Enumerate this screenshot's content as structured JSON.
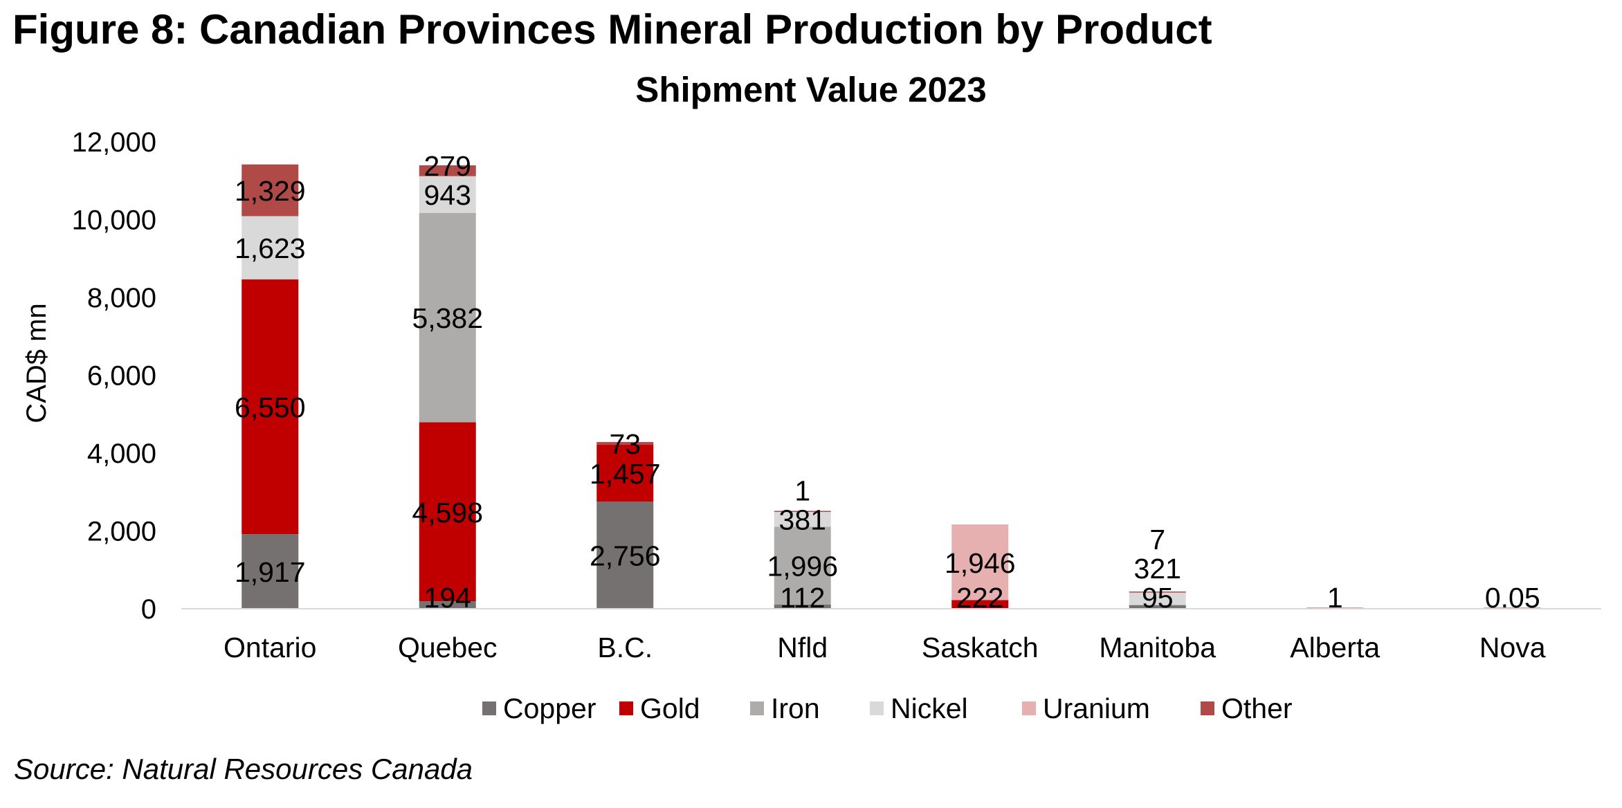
{
  "figure_title": "Figure 8: Canadian Provinces Mineral Production by Product",
  "source": "Source: Natural Resources Canada",
  "chart_data": {
    "type": "bar",
    "stacked": true,
    "title": "Shipment Value 2023",
    "ylabel": "CAD$ mn",
    "xlabel": "",
    "ylim": [
      0,
      12000
    ],
    "yticks": [
      0,
      2000,
      4000,
      6000,
      8000,
      10000,
      12000
    ],
    "ytick_labels": [
      "0",
      "2,000",
      "4,000",
      "6,000",
      "8,000",
      "10,000",
      "12,000"
    ],
    "grid": false,
    "legend_position": "bottom",
    "categories": [
      "Ontario",
      "Quebec",
      "B.C.",
      "Nfld",
      "Saskatch",
      "Manitoba",
      "Alberta",
      "Nova"
    ],
    "series": [
      {
        "name": "Copper",
        "color": "#767171",
        "values": [
          1917,
          194,
          2756,
          112,
          0,
          95,
          0,
          0
        ],
        "labels": [
          "1,917",
          "194",
          "2,756",
          "112",
          "",
          "95",
          "",
          ""
        ]
      },
      {
        "name": "Gold",
        "color": "#c00000",
        "values": [
          6550,
          4598,
          1457,
          0,
          222,
          0,
          0,
          0
        ],
        "labels": [
          "6,550",
          "4,598",
          "1,457",
          "",
          "222",
          "",
          "",
          ""
        ]
      },
      {
        "name": "Iron",
        "color": "#aeabab",
        "values": [
          0,
          5382,
          0,
          1996,
          0,
          0,
          0,
          0
        ],
        "labels": [
          "",
          "5,382",
          "",
          "1,996",
          "",
          "",
          "",
          ""
        ]
      },
      {
        "name": "Nickel",
        "color": "#d9d9d9",
        "values": [
          1623,
          943,
          0,
          381,
          0,
          321,
          0,
          0
        ],
        "labels": [
          "1,623",
          "943",
          "",
          "381",
          "",
          "321",
          "",
          ""
        ]
      },
      {
        "name": "Uranium",
        "color": "#e6b0b0",
        "values": [
          0,
          0,
          0,
          0,
          1946,
          0,
          0,
          0
        ],
        "labels": [
          "",
          "",
          "",
          "",
          "1,946",
          "",
          "",
          ""
        ]
      },
      {
        "name": "Other",
        "color": "#b04a47",
        "values": [
          1329,
          279,
          73,
          1,
          0,
          7,
          1,
          0.05
        ],
        "labels": [
          "1,329",
          "279",
          "73",
          "1",
          "",
          "7",
          "1",
          "0.05"
        ]
      }
    ]
  }
}
